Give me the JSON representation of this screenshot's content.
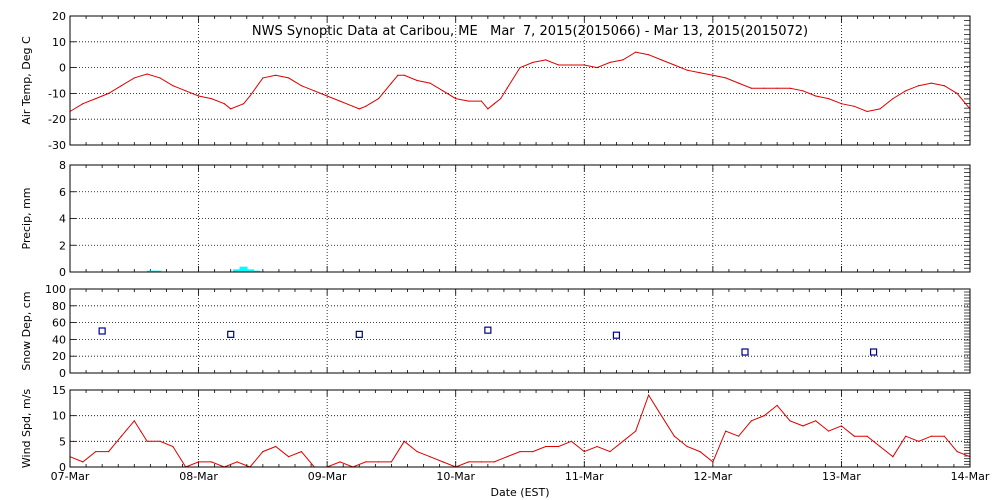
{
  "chart_data": {
    "title": "NWS Synoptic Data at Caribou, ME   Mar  7, 2015(2015066) - Mar 13, 2015(2015072)",
    "xlabel": "Date (EST)",
    "x_ticks": [
      "07-Mar",
      "08-Mar",
      "09-Mar",
      "10-Mar",
      "11-Mar",
      "12-Mar",
      "13-Mar",
      "14-Mar"
    ],
    "x_range_days": [
      0,
      7
    ],
    "grid": true,
    "panels": [
      {
        "id": "air-temp",
        "type": "line",
        "ylabel": "Air Temp, Deg C",
        "ylim": [
          -30,
          20
        ],
        "yticks": [
          -30,
          -20,
          -10,
          0,
          10,
          20
        ],
        "color": "#dd0000",
        "x": [
          0,
          0.1,
          0.2,
          0.3,
          0.4,
          0.5,
          0.6,
          0.7,
          0.8,
          0.9,
          1.0,
          1.1,
          1.2,
          1.25,
          1.3,
          1.35,
          1.4,
          1.5,
          1.6,
          1.7,
          1.8,
          1.9,
          2.0,
          2.1,
          2.2,
          2.25,
          2.3,
          2.4,
          2.5,
          2.55,
          2.6,
          2.7,
          2.8,
          2.9,
          3.0,
          3.1,
          3.2,
          3.25,
          3.3,
          3.35,
          3.4,
          3.5,
          3.6,
          3.7,
          3.8,
          3.9,
          4.0,
          4.1,
          4.2,
          4.3,
          4.4,
          4.5,
          4.6,
          4.7,
          4.8,
          4.9,
          5.0,
          5.1,
          5.2,
          5.3,
          5.4,
          5.5,
          5.6,
          5.7,
          5.8,
          5.9,
          6.0,
          6.1,
          6.2,
          6.3,
          6.4,
          6.5,
          6.6,
          6.7,
          6.8,
          6.9,
          7.0
        ],
        "values": [
          -17,
          -14,
          -12,
          -10,
          -7,
          -4,
          -2.5,
          -4,
          -7,
          -9,
          -11,
          -12,
          -14,
          -16,
          -15,
          -14,
          -11,
          -4,
          -3,
          -4,
          -7,
          -9,
          -11,
          -13,
          -15,
          -16,
          -15,
          -12,
          -6,
          -3,
          -3,
          -5,
          -6,
          -9,
          -12,
          -13,
          -13,
          -16,
          -14,
          -12,
          -8,
          0,
          2,
          3,
          1,
          1,
          1,
          0,
          2,
          3,
          6,
          5,
          3,
          1,
          -1,
          -2,
          -3,
          -4,
          -6,
          -8,
          -8,
          -8,
          -8,
          -9,
          -11,
          -12,
          -14,
          -15,
          -17,
          -16,
          -12,
          -9,
          -7,
          -6,
          -7,
          -10,
          -16
        ]
      },
      {
        "id": "precip",
        "type": "bar",
        "ylabel": "Precip, mm",
        "ylim": [
          0,
          8
        ],
        "yticks": [
          0,
          2,
          4,
          6,
          8
        ],
        "color": "#00ffff",
        "x": [
          0.63,
          0.68,
          1.3,
          1.35,
          1.4,
          1.45
        ],
        "values": [
          0.1,
          0.1,
          0.2,
          0.4,
          0.2,
          0.1
        ]
      },
      {
        "id": "snow-depth",
        "type": "scatter",
        "ylabel": "Snow Dep, cm",
        "ylim": [
          0,
          100
        ],
        "yticks": [
          0,
          20,
          40,
          60,
          80,
          100
        ],
        "color": "#00008b",
        "x": [
          0.25,
          1.25,
          2.25,
          3.25,
          4.25,
          5.25,
          6.25
        ],
        "values": [
          50,
          46,
          46,
          51,
          45,
          25,
          25
        ]
      },
      {
        "id": "wind-speed",
        "type": "line",
        "ylabel": "Wind Spd, m/s",
        "ylim": [
          0,
          15
        ],
        "yticks": [
          0,
          5,
          10,
          15
        ],
        "color": "#dd0000",
        "x": [
          0,
          0.1,
          0.2,
          0.3,
          0.4,
          0.5,
          0.55,
          0.6,
          0.7,
          0.8,
          0.9,
          1.0,
          1.1,
          1.2,
          1.3,
          1.4,
          1.5,
          1.6,
          1.7,
          1.8,
          1.9,
          2.0,
          2.1,
          2.2,
          2.3,
          2.4,
          2.5,
          2.6,
          2.7,
          2.8,
          2.9,
          3.0,
          3.1,
          3.2,
          3.3,
          3.4,
          3.5,
          3.6,
          3.7,
          3.8,
          3.9,
          4.0,
          4.1,
          4.2,
          4.3,
          4.4,
          4.5,
          4.6,
          4.7,
          4.8,
          4.9,
          5.0,
          5.1,
          5.2,
          5.3,
          5.4,
          5.5,
          5.6,
          5.7,
          5.8,
          5.9,
          6.0,
          6.1,
          6.2,
          6.3,
          6.4,
          6.5,
          6.6,
          6.7,
          6.8,
          6.9,
          7.0
        ],
        "values": [
          2,
          1,
          3,
          3,
          6,
          9,
          7,
          5,
          5,
          4,
          0,
          1,
          1,
          0,
          1,
          0,
          3,
          4,
          2,
          3,
          0,
          0,
          1,
          0,
          1,
          1,
          1,
          5,
          3,
          2,
          1,
          0,
          1,
          1,
          1,
          2,
          3,
          3,
          4,
          4,
          5,
          3,
          4,
          3,
          5,
          7,
          14,
          10,
          6,
          4,
          3,
          1,
          7,
          6,
          9,
          10,
          12,
          9,
          8,
          9,
          7,
          8,
          6,
          6,
          4,
          2,
          6,
          5,
          6,
          6,
          3,
          2
        ]
      }
    ]
  }
}
